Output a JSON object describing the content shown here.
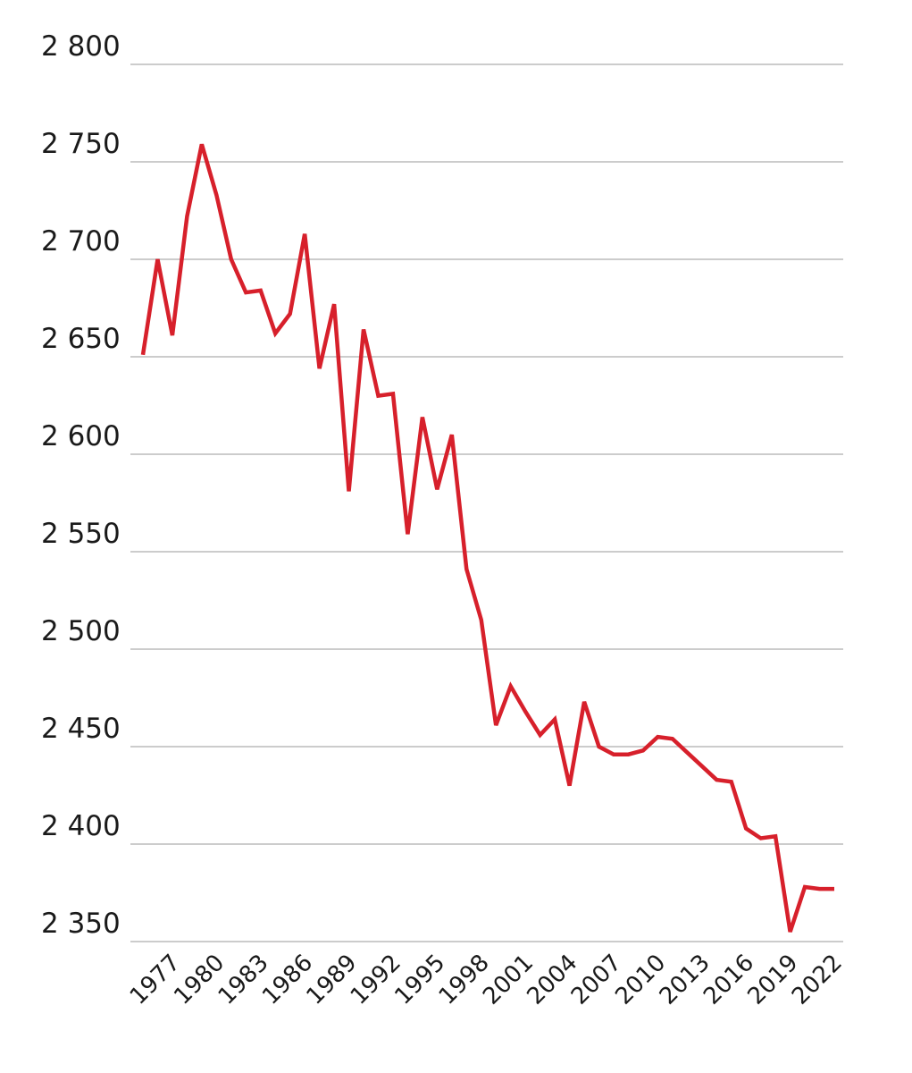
{
  "chart_data": {
    "type": "line",
    "title": "",
    "xlabel": "",
    "ylabel": "",
    "ylim": [
      2350,
      2800
    ],
    "y_ticks": [
      2350,
      2400,
      2450,
      2500,
      2550,
      2600,
      2650,
      2700,
      2750,
      2800
    ],
    "y_tick_labels": [
      "2 350",
      "2 400",
      "2 450",
      "2 500",
      "2 550",
      "2 600",
      "2 650",
      "2 700",
      "2 750",
      "2 800"
    ],
    "x_tick_labels": [
      "1977",
      "1980",
      "1983",
      "1986",
      "1989",
      "1992",
      "1995",
      "1998",
      "2001",
      "2004",
      "2007",
      "2010",
      "2013",
      "2016",
      "2019",
      "2022"
    ],
    "grid": true,
    "series": [
      {
        "name": "",
        "color": "#d7202b",
        "x": [
          1975,
          1976,
          1977,
          1978,
          1979,
          1980,
          1981,
          1982,
          1983,
          1984,
          1985,
          1986,
          1987,
          1988,
          1989,
          1990,
          1991,
          1992,
          1993,
          1994,
          1995,
          1996,
          1997,
          1998,
          1999,
          2000,
          2001,
          2002,
          2003,
          2004,
          2005,
          2006,
          2007,
          2008,
          2009,
          2010,
          2011,
          2012,
          2013,
          2014,
          2015,
          2016,
          2017,
          2018,
          2019,
          2020,
          2021,
          2022
        ],
        "values": [
          2651,
          2700,
          2661,
          2722,
          2759,
          2733,
          2700,
          2683,
          2684,
          2662,
          2672,
          2713,
          2644,
          2677,
          2581,
          2664,
          2630,
          2631,
          2559,
          2619,
          2582,
          2610,
          2541,
          2515,
          2461,
          2481,
          2468,
          2456,
          2464,
          2430,
          2473,
          2450,
          2446,
          2446,
          2448,
          2455,
          2454,
          2447,
          2440,
          2433,
          2432,
          2408,
          2403,
          2404,
          2355,
          2378,
          2377,
          2377
        ]
      }
    ]
  }
}
